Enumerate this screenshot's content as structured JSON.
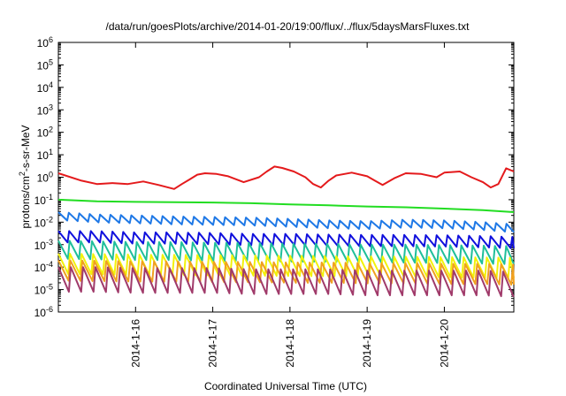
{
  "chart_data": {
    "type": "line",
    "title": "/data/run/goesPlots/archive/2014-01-20/19:00/flux/../flux/5daysMarsFluxes.txt",
    "xlabel": "Coordinated Universal Time (UTC)",
    "ylabel_parts": {
      "pre": "protons/cm",
      "sup": "2",
      "post": "-s-sr-MeV"
    },
    "x_range_days": [
      "2014-01-15",
      "2014-01-20"
    ],
    "x_range": [
      15.0,
      20.9
    ],
    "x_ticks": [
      {
        "x": 16,
        "label": "2014-1-16"
      },
      {
        "x": 17,
        "label": "2014-1-17"
      },
      {
        "x": 18,
        "label": "2014-1-18"
      },
      {
        "x": 19,
        "label": "2014-1-19"
      },
      {
        "x": 20,
        "label": "2014-1-20"
      }
    ],
    "y_scale": "log",
    "y_range_exp": [
      -6,
      6
    ],
    "y_ticks": [
      {
        "base": "10",
        "exp": "-6"
      },
      {
        "base": "10",
        "exp": "-5"
      },
      {
        "base": "10",
        "exp": "-4"
      },
      {
        "base": "10",
        "exp": "-3"
      },
      {
        "base": "10",
        "exp": "-2"
      },
      {
        "base": "10",
        "exp": "-1"
      },
      {
        "base": "10",
        "exp": "0"
      },
      {
        "base": "10",
        "exp": "1"
      },
      {
        "base": "10",
        "exp": "2"
      },
      {
        "base": "10",
        "exp": "3"
      },
      {
        "base": "10",
        "exp": "4"
      },
      {
        "base": "10",
        "exp": "5"
      },
      {
        "base": "10",
        "exp": "6"
      }
    ],
    "grid": false,
    "legend": "none",
    "series": [
      {
        "color": "#e41a1c",
        "pattern": "sawtooth",
        "x": [
          15.0,
          15.3,
          15.5,
          15.7,
          15.9,
          16.1,
          16.3,
          16.5,
          16.6,
          16.7,
          16.8,
          16.9,
          17.05,
          17.2,
          17.4,
          17.6,
          17.7,
          17.8,
          17.9,
          18.05,
          18.2,
          18.3,
          18.4,
          18.5,
          18.6,
          18.8,
          19.0,
          19.1,
          19.2,
          19.35,
          19.5,
          19.7,
          19.9,
          20.0,
          20.2,
          20.35,
          20.5,
          20.6,
          20.7,
          20.8,
          20.9
        ],
        "y": [
          1.5,
          0.7,
          0.5,
          0.55,
          0.5,
          0.65,
          0.45,
          0.3,
          0.5,
          0.8,
          1.3,
          1.5,
          1.4,
          1.1,
          0.6,
          1.0,
          1.8,
          3.0,
          2.6,
          1.8,
          1.0,
          0.5,
          0.35,
          0.7,
          1.2,
          1.6,
          1.1,
          0.7,
          0.45,
          0.9,
          1.5,
          1.4,
          1.0,
          1.6,
          1.8,
          1.0,
          0.6,
          0.35,
          0.5,
          2.5,
          1.8
        ]
      },
      {
        "color": "#22dd22",
        "pattern": "smooth",
        "x": [
          15.0,
          15.5,
          16.0,
          16.5,
          17.0,
          17.5,
          18.0,
          18.5,
          19.0,
          19.5,
          20.0,
          20.5,
          20.9
        ],
        "y": [
          0.1,
          0.085,
          0.08,
          0.078,
          0.075,
          0.07,
          0.062,
          0.056,
          0.05,
          0.046,
          0.04,
          0.034,
          0.028
        ]
      },
      {
        "color": "#1e78e6",
        "pattern": "sawtooth",
        "x": [
          15.0,
          15.5,
          16.0,
          16.5,
          17.0,
          17.5,
          18.0,
          18.5,
          19.0,
          19.5,
          20.0,
          20.5,
          20.9
        ],
        "y": [
          0.028,
          0.022,
          0.02,
          0.018,
          0.017,
          0.016,
          0.014,
          0.012,
          0.011,
          0.013,
          0.012,
          0.01,
          0.008
        ]
      },
      {
        "color": "#1010dd",
        "pattern": "sawtooth",
        "x": [
          15.0,
          15.5,
          16.0,
          16.5,
          17.0,
          17.5,
          18.0,
          18.5,
          19.0,
          19.5,
          20.0,
          20.5,
          20.9
        ],
        "y": [
          0.004,
          0.004,
          0.0035,
          0.0035,
          0.0033,
          0.003,
          0.003,
          0.0028,
          0.0027,
          0.0027,
          0.0026,
          0.0024,
          0.0022
        ]
      },
      {
        "color": "#1fbf9a",
        "pattern": "sawtooth",
        "x": [
          15.0,
          15.5,
          16.0,
          16.5,
          17.0,
          17.5,
          18.0,
          18.5,
          19.0,
          19.5,
          20.0,
          20.5,
          20.9
        ],
        "y": [
          0.0015,
          0.0014,
          0.0013,
          0.0013,
          0.0012,
          0.0012,
          0.0011,
          0.0011,
          0.001,
          0.001,
          0.00095,
          0.0009,
          0.00085
        ]
      },
      {
        "color": "#f2f20a",
        "pattern": "sawtooth",
        "x": [
          15.0,
          15.5,
          16.0,
          16.5,
          17.0,
          17.5,
          18.0,
          18.5,
          19.0,
          19.5,
          20.0,
          20.5,
          20.9
        ],
        "y": [
          0.0004,
          0.00038,
          0.00036,
          0.00035,
          0.00034,
          0.00033,
          0.00032,
          0.00031,
          0.0003,
          0.00029,
          0.00028,
          0.00027,
          0.00026
        ]
      },
      {
        "color": "#f0a020",
        "pattern": "sawtooth",
        "x": [
          15.0,
          15.5,
          16.0,
          16.5,
          17.0,
          17.5,
          18.0,
          18.5,
          19.0,
          19.5,
          20.0,
          20.5,
          20.9
        ],
        "y": [
          0.0002,
          0.00019,
          0.00018,
          0.00018,
          0.00017,
          0.00017,
          0.00016,
          0.00016,
          0.00015,
          0.00015,
          0.00014,
          0.00014,
          0.00013
        ]
      },
      {
        "color": "#a03a6a",
        "pattern": "sawtooth",
        "x": [
          15.0,
          15.5,
          16.0,
          16.5,
          17.0,
          17.5,
          18.0,
          18.5,
          19.0,
          19.5,
          20.0,
          20.5,
          20.9
        ],
        "y": [
          0.0001,
          0.0001,
          9e-05,
          9e-05,
          9e-05,
          8e-05,
          8e-05,
          8e-05,
          7e-05,
          7e-05,
          7e-05,
          7e-05,
          6e-05
        ]
      }
    ]
  }
}
